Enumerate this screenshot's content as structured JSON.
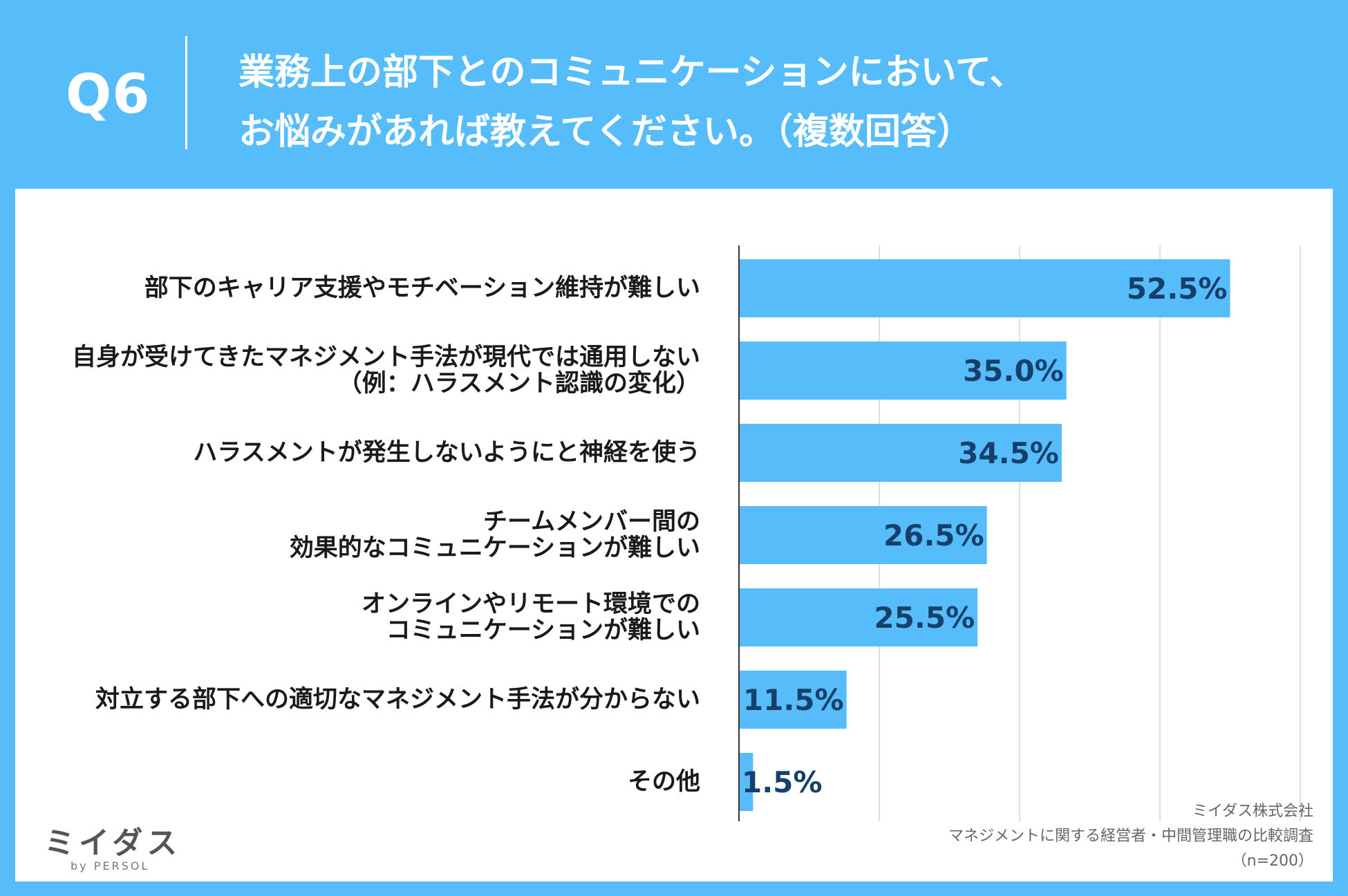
{
  "header": {
    "question_number": "Q6",
    "title_line1": "業務上の部下とのコミュニケーションにおいて、",
    "title_line2": "お悩みがあれば教えてください。（複数回答）"
  },
  "chart_data": {
    "type": "bar",
    "orientation": "horizontal",
    "categories": [
      "部下のキャリア支援やモチベーション維持が難しい",
      "自身が受けてきたマネジメント手法が現代では通用しない（例：ハラスメント認識の変化）",
      "ハラスメントが発生しないようにと神経を使う",
      "チームメンバー間の効果的なコミュニケーションが難しい",
      "オンラインやリモート環境でのコミュニケーションが難しい",
      "対立する部下への適切なマネジメント手法が分からない",
      "その他"
    ],
    "label_lines": [
      [
        "部下のキャリア支援やモチベーション維持が難しい"
      ],
      [
        "自身が受けてきたマネジメント手法が現代では通用しない",
        "（例：ハラスメント認識の変化）"
      ],
      [
        "ハラスメントが発生しないようにと神経を使う"
      ],
      [
        "チームメンバー間の",
        "効果的なコミュニケーションが難しい"
      ],
      [
        "オンラインやリモート環境での",
        "コミュニケーションが難しい"
      ],
      [
        "対立する部下への適切なマネジメント手法が分からない"
      ],
      [
        "その他"
      ]
    ],
    "values": [
      52.5,
      35.0,
      34.5,
      26.5,
      25.5,
      11.5,
      1.5
    ],
    "value_labels": [
      "52.5%",
      "35.0%",
      "34.5%",
      "26.5%",
      "25.5%",
      "11.5%",
      "1.5%"
    ],
    "xlim": [
      0,
      60
    ],
    "grid_step": 15,
    "grid": true,
    "bar_color": "#56bdfa",
    "value_label_color": "#14406b"
  },
  "credit": {
    "company": "ミイダス株式会社",
    "survey": "マネジメントに関する経営者・中間管理職の比較調査",
    "sample": "（n=200）"
  },
  "logo": {
    "name": "ミイダス",
    "sub": "by PERSOL"
  }
}
